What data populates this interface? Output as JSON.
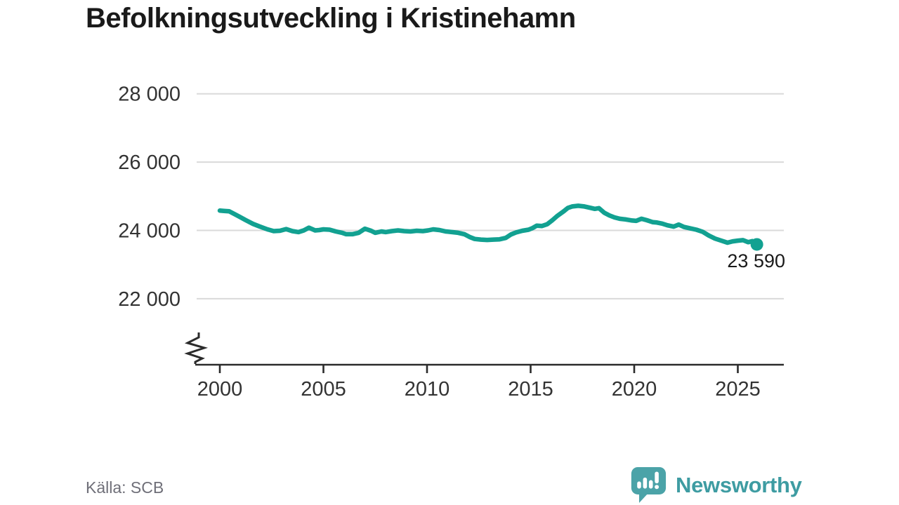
{
  "page": {
    "title": "Befolkningsutveckling i Kristinehamn",
    "source": "Källa: SCB",
    "logo_text": "Newsworthy"
  },
  "colors": {
    "background": "#ffffff",
    "line": "#12a191",
    "grid": "#dadada",
    "axis": "#2b2b2b",
    "tick_label": "#333333",
    "title": "#1a1a1a",
    "annotation": "#1a1a1a",
    "source_text": "#6f6f78",
    "logo": "#3e9ca2"
  },
  "chart_data": {
    "type": "line",
    "title": "Befolkningsutveckling i Kristinehamn",
    "xlabel": "",
    "ylabel": "",
    "grid": "horizontal",
    "legend": "none",
    "axis_break": true,
    "x_range": [
      2000,
      2025.92
    ],
    "ylim": [
      22000,
      28000
    ],
    "y_ticks": [
      {
        "value": 28000,
        "label": "28 000"
      },
      {
        "value": 26000,
        "label": "26 000"
      },
      {
        "value": 24000,
        "label": "24 000"
      },
      {
        "value": 22000,
        "label": "22 000"
      }
    ],
    "x_ticks": [
      {
        "year": 2000,
        "label": "2000"
      },
      {
        "year": 2005,
        "label": "2005"
      },
      {
        "year": 2010,
        "label": "2010"
      },
      {
        "year": 2015,
        "label": "2015"
      },
      {
        "year": 2020,
        "label": "2020"
      },
      {
        "year": 2025,
        "label": "2025"
      }
    ],
    "end_label": {
      "value": 23590,
      "label": "23 590"
    },
    "series": [
      {
        "name": "Befolkning Kristinehamn",
        "points": [
          [
            2000.0,
            24580
          ],
          [
            2000.2,
            24570
          ],
          [
            2000.45,
            24560
          ],
          [
            2000.7,
            24480
          ],
          [
            2000.95,
            24400
          ],
          [
            2001.25,
            24300
          ],
          [
            2001.6,
            24190
          ],
          [
            2001.9,
            24120
          ],
          [
            2002.3,
            24030
          ],
          [
            2002.6,
            23980
          ],
          [
            2002.9,
            23990
          ],
          [
            2003.2,
            24040
          ],
          [
            2003.5,
            23980
          ],
          [
            2003.8,
            23950
          ],
          [
            2004.05,
            24000
          ],
          [
            2004.3,
            24080
          ],
          [
            2004.6,
            24000
          ],
          [
            2004.8,
            24010
          ],
          [
            2005.0,
            24030
          ],
          [
            2005.3,
            24020
          ],
          [
            2005.6,
            23970
          ],
          [
            2005.9,
            23930
          ],
          [
            2006.1,
            23890
          ],
          [
            2006.4,
            23890
          ],
          [
            2006.7,
            23930
          ],
          [
            2007.0,
            24050
          ],
          [
            2007.3,
            23990
          ],
          [
            2007.5,
            23930
          ],
          [
            2007.8,
            23970
          ],
          [
            2008.0,
            23950
          ],
          [
            2008.3,
            23980
          ],
          [
            2008.6,
            24000
          ],
          [
            2008.9,
            23980
          ],
          [
            2009.2,
            23970
          ],
          [
            2009.5,
            23990
          ],
          [
            2009.8,
            23980
          ],
          [
            2010.05,
            24000
          ],
          [
            2010.3,
            24030
          ],
          [
            2010.6,
            24010
          ],
          [
            2010.9,
            23970
          ],
          [
            2011.2,
            23950
          ],
          [
            2011.5,
            23930
          ],
          [
            2011.8,
            23890
          ],
          [
            2012.05,
            23810
          ],
          [
            2012.3,
            23750
          ],
          [
            2012.6,
            23730
          ],
          [
            2012.9,
            23720
          ],
          [
            2013.2,
            23730
          ],
          [
            2013.5,
            23740
          ],
          [
            2013.8,
            23780
          ],
          [
            2014.05,
            23880
          ],
          [
            2014.3,
            23940
          ],
          [
            2014.6,
            23990
          ],
          [
            2014.9,
            24020
          ],
          [
            2015.1,
            24070
          ],
          [
            2015.3,
            24140
          ],
          [
            2015.55,
            24130
          ],
          [
            2015.8,
            24180
          ],
          [
            2016.05,
            24300
          ],
          [
            2016.3,
            24430
          ],
          [
            2016.6,
            24560
          ],
          [
            2016.8,
            24660
          ],
          [
            2017.0,
            24700
          ],
          [
            2017.3,
            24720
          ],
          [
            2017.6,
            24700
          ],
          [
            2017.9,
            24660
          ],
          [
            2018.1,
            24630
          ],
          [
            2018.3,
            24650
          ],
          [
            2018.55,
            24520
          ],
          [
            2018.8,
            24440
          ],
          [
            2019.05,
            24380
          ],
          [
            2019.3,
            24340
          ],
          [
            2019.6,
            24320
          ],
          [
            2019.9,
            24290
          ],
          [
            2020.1,
            24280
          ],
          [
            2020.35,
            24340
          ],
          [
            2020.6,
            24300
          ],
          [
            2020.9,
            24240
          ],
          [
            2021.1,
            24230
          ],
          [
            2021.35,
            24200
          ],
          [
            2021.6,
            24150
          ],
          [
            2021.9,
            24110
          ],
          [
            2022.15,
            24170
          ],
          [
            2022.4,
            24100
          ],
          [
            2022.7,
            24060
          ],
          [
            2023.0,
            24020
          ],
          [
            2023.3,
            23960
          ],
          [
            2023.6,
            23850
          ],
          [
            2023.9,
            23760
          ],
          [
            2024.2,
            23700
          ],
          [
            2024.5,
            23640
          ],
          [
            2024.75,
            23680
          ],
          [
            2025.0,
            23700
          ],
          [
            2025.25,
            23715
          ],
          [
            2025.5,
            23655
          ],
          [
            2025.7,
            23685
          ],
          [
            2025.92,
            23590
          ]
        ]
      }
    ]
  }
}
